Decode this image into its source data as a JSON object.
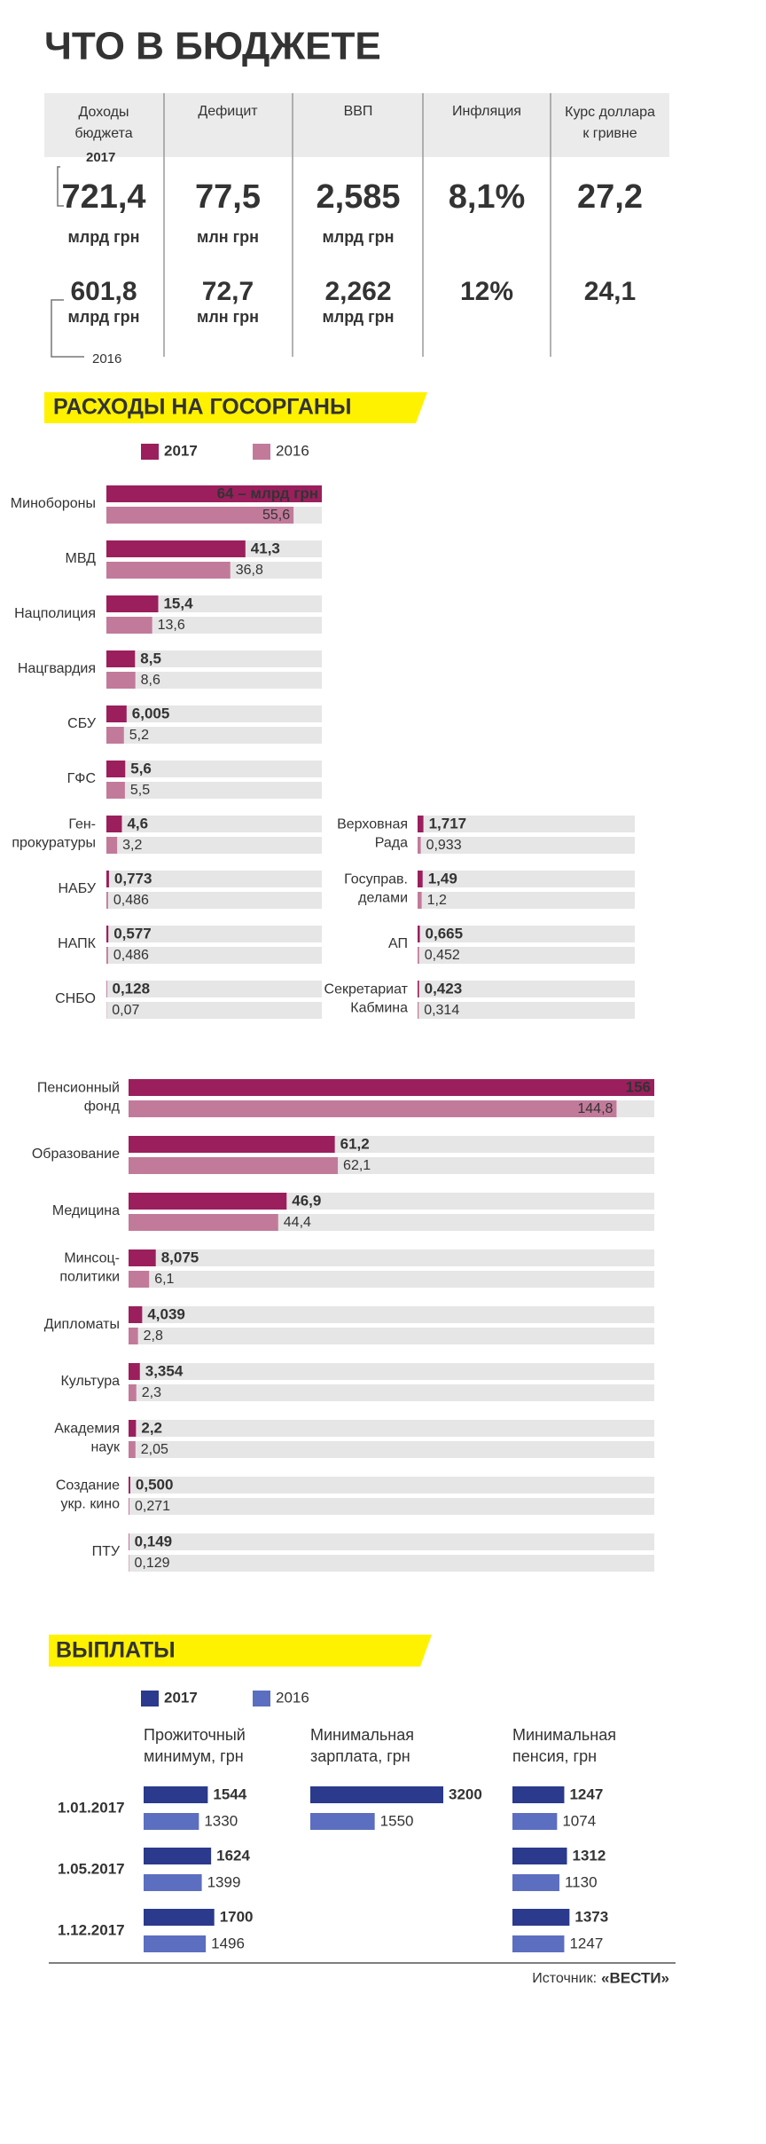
{
  "title": "ЧТО В БЮДЖЕТЕ",
  "indicators": {
    "year_2017": "2017",
    "year_2016": "2016",
    "color_2016": "#8c8c8c",
    "columns": [
      {
        "header": [
          "Доходы",
          "бюджета"
        ],
        "v2017": "721,4",
        "u2017": "млрд грн",
        "color": "#8cc63e",
        "v2016": "601,8",
        "u2016": "млрд грн"
      },
      {
        "header": [
          "Дефицит"
        ],
        "v2017": "77,5",
        "u2017": "млн грн",
        "color": "#8cc63e",
        "v2016": "72,7",
        "u2016": "млн грн"
      },
      {
        "header": [
          "ВВП"
        ],
        "v2017": "2,585",
        "u2017": "млрд грн",
        "color": "#8cc63e",
        "v2016": "2,262",
        "u2016": "млрд грн"
      },
      {
        "header": [
          "Инфляция"
        ],
        "v2017": "8,1%",
        "color": "#8cc63e",
        "v2016": "12%"
      },
      {
        "header": [
          "Курс доллара",
          "к гривне"
        ],
        "v2017": "27,2",
        "color": "#d7272f",
        "v2016": "24,1"
      }
    ]
  },
  "spending": {
    "title": "РАСХОДЫ НА ГОСОРГАНЫ",
    "legend": [
      "2017",
      "2016"
    ],
    "colors": [
      "#9b1f5d",
      "#c27a9b"
    ],
    "groups": [
      {
        "rows": [
          {
            "label": [
              "Минобороны"
            ],
            "v2017": {
              "value": 64,
              "label": "64 – млрд грн"
            },
            "v2016": {
              "value": 55.6,
              "label": "55,6"
            }
          },
          {
            "label": [
              "МВД"
            ],
            "v2017": {
              "value": 41.3,
              "label": "41,3"
            },
            "v2016": {
              "value": 36.8,
              "label": "36,8"
            }
          },
          {
            "label": [
              "Нацполиция"
            ],
            "v2017": {
              "value": 15.4,
              "label": "15,4"
            },
            "v2016": {
              "value": 13.6,
              "label": "13,6"
            }
          },
          {
            "label": [
              "Нацгвардия"
            ],
            "v2017": {
              "value": 8.5,
              "label": "8,5"
            },
            "v2016": {
              "value": 8.6,
              "label": "8,6"
            }
          },
          {
            "label": [
              "СБУ"
            ],
            "v2017": {
              "value": 6.005,
              "label": "6,005"
            },
            "v2016": {
              "value": 5.2,
              "label": "5,2"
            }
          },
          {
            "label": [
              "ГФС"
            ],
            "v2017": {
              "value": 5.6,
              "label": "5,6"
            },
            "v2016": {
              "value": 5.5,
              "label": "5,5"
            }
          },
          {
            "label": [
              "Ген-",
              "прокуратуры"
            ],
            "v2017": {
              "value": 4.6,
              "label": "4,6"
            },
            "v2016": {
              "value": 3.2,
              "label": "3,2"
            }
          },
          {
            "label": [
              "НАБУ"
            ],
            "v2017": {
              "value": 0.773,
              "label": "0,773"
            },
            "v2016": {
              "value": 0.486,
              "label": "0,486"
            }
          },
          {
            "label": [
              "НАПК"
            ],
            "v2017": {
              "value": 0.577,
              "label": "0,577"
            },
            "v2016": {
              "value": 0.486,
              "label": "0,486"
            }
          },
          {
            "label": [
              "СНБО"
            ],
            "v2017": {
              "value": 0.128,
              "label": "0,128"
            },
            "v2016": {
              "value": 0.07,
              "label": "0,07"
            }
          }
        ]
      },
      {
        "rows": [
          {
            "label": [
              "Верховная",
              "Рада"
            ],
            "v2017": {
              "value": 1.717,
              "label": "1,717"
            },
            "v2016": {
              "value": 0.933,
              "label": "0,933"
            }
          },
          {
            "label": [
              "Госуправ.",
              "делами"
            ],
            "v2017": {
              "value": 1.49,
              "label": "1,49"
            },
            "v2016": {
              "value": 1.2,
              "label": "1,2"
            }
          },
          {
            "label": [
              "АП"
            ],
            "v2017": {
              "value": 0.665,
              "label": "0,665"
            },
            "v2016": {
              "value": 0.452,
              "label": "0,452"
            }
          },
          {
            "label": [
              "Секретариат",
              "Кабмина"
            ],
            "v2017": {
              "value": 0.423,
              "label": "0,423"
            },
            "v2016": {
              "value": 0.314,
              "label": "0,314"
            }
          }
        ]
      },
      {
        "rows": [
          {
            "label": [
              "Пенсионный",
              "фонд"
            ],
            "v2017": 156,
            "v2016": {
              "value": 144.8,
              "label": "144,8"
            }
          },
          {
            "label": [
              "Образование"
            ],
            "v2017": {
              "value": 61.2,
              "label": "61,2"
            },
            "v2016": {
              "value": 62.1,
              "label": "62,1"
            }
          },
          {
            "label": [
              "Медицина"
            ],
            "v2017": {
              "value": 46.9,
              "label": "46,9"
            },
            "v2016": {
              "value": 44.4,
              "label": "44,4"
            }
          },
          {
            "label": [
              "Минсоц-",
              "политики"
            ],
            "v2017": {
              "value": 8.075,
              "label": "8,075"
            },
            "v2016": {
              "value": 6.1,
              "label": "6,1"
            }
          },
          {
            "label": [
              "Дипломаты"
            ],
            "v2017": {
              "value": 4.039,
              "label": "4,039"
            },
            "v2016": {
              "value": 2.8,
              "label": "2,8"
            }
          },
          {
            "label": [
              "Культура"
            ],
            "v2017": {
              "value": 3.354,
              "label": "3,354"
            },
            "v2016": {
              "value": 2.3,
              "label": "2,3"
            }
          },
          {
            "label": [
              "Академия",
              "наук"
            ],
            "v2017": {
              "value": 2.2,
              "label": "2,2"
            },
            "v2016": {
              "value": 2.05,
              "label": "2,05"
            }
          },
          {
            "label": [
              "Создание",
              "укр. кино"
            ],
            "v2017": {
              "value": 0.5,
              "label": "0,500"
            },
            "v2016": {
              "value": 0.271,
              "label": "0,271"
            }
          },
          {
            "label": [
              "ПТУ"
            ],
            "v2017": {
              "value": 0.149,
              "label": "0,149"
            },
            "v2016": {
              "value": 0.129,
              "label": "0,129"
            }
          }
        ]
      }
    ]
  },
  "payments": {
    "title": "ВЫПЛАТЫ",
    "legend": [
      "2017",
      "2016"
    ],
    "colors": [
      "#2b3a8c",
      "#5b6ec0"
    ],
    "dates": [
      "1.01.2017",
      "1.05.2017",
      "1.12.2017"
    ],
    "columns": [
      {
        "header": [
          "Прожиточный",
          "минимум, грн"
        ],
        "v2017": [
          1544,
          1624,
          1700
        ],
        "v2016": [
          1330,
          1399,
          1496
        ]
      },
      {
        "header": [
          "Минимальная",
          "зарплата, грн"
        ],
        "v2017": [
          3200,
          null,
          null
        ],
        "v2016": [
          1550,
          null,
          null
        ]
      },
      {
        "header": [
          "Минимальная",
          "пенсия, грн"
        ],
        "v2017": [
          1247,
          1312,
          1373
        ],
        "v2016": [
          1074,
          1130,
          1247
        ]
      }
    ]
  },
  "source": {
    "label": "Источник:",
    "name": "«ВЕСТИ»"
  }
}
